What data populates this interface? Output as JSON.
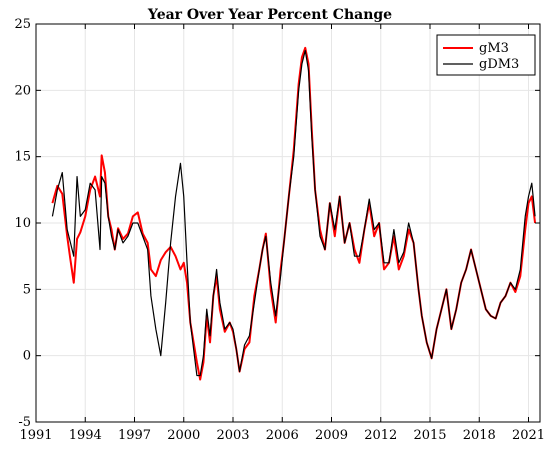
{
  "chart_data": {
    "type": "line",
    "title": "Year Over Year Percent Change",
    "xlabel": "",
    "ylabel": "",
    "xlim": [
      1991.0,
      2021.7
    ],
    "ylim": [
      -5,
      25
    ],
    "xticks": [
      1991,
      1994,
      1997,
      2000,
      2003,
      2006,
      2009,
      2012,
      2015,
      2018,
      2021
    ],
    "yticks": [
      -5,
      0,
      5,
      10,
      15,
      20,
      25
    ],
    "grid": true,
    "legend_position": "top-right",
    "series": [
      {
        "name": "gM3",
        "color": "#ff0000",
        "x": [
          1992.0,
          1992.3,
          1992.6,
          1992.9,
          1993.1,
          1993.3,
          1993.5,
          1993.7,
          1994.0,
          1994.3,
          1994.6,
          1994.9,
          1995.0,
          1995.2,
          1995.4,
          1995.6,
          1995.8,
          1996.0,
          1996.3,
          1996.6,
          1996.9,
          1997.2,
          1997.5,
          1997.8,
          1998.0,
          1998.3,
          1998.6,
          1998.9,
          1999.2,
          1999.5,
          1999.8,
          2000.0,
          2000.2,
          2000.4,
          2000.6,
          2000.8,
          2001.0,
          2001.2,
          2001.4,
          2001.6,
          2001.8,
          2002.0,
          2002.2,
          2002.5,
          2002.8,
          2003.0,
          2003.2,
          2003.4,
          2003.7,
          2004.0,
          2004.3,
          2004.6,
          2004.8,
          2005.0,
          2005.3,
          2005.6,
          2005.9,
          2006.1,
          2006.4,
          2006.7,
          2007.0,
          2007.2,
          2007.4,
          2007.6,
          2007.8,
          2008.0,
          2008.3,
          2008.6,
          2008.9,
          2009.2,
          2009.5,
          2009.8,
          2010.1,
          2010.4,
          2010.7,
          2011.0,
          2011.3,
          2011.6,
          2011.9,
          2012.2,
          2012.5,
          2012.8,
          2013.1,
          2013.4,
          2013.7,
          2014.0,
          2014.3,
          2014.5,
          2014.8,
          2015.1,
          2015.4,
          2015.7,
          2016.0,
          2016.3,
          2016.6,
          2016.9,
          2017.2,
          2017.5,
          2017.8,
          2018.1,
          2018.4,
          2018.7,
          2019.0,
          2019.3,
          2019.6,
          2019.9,
          2020.2,
          2020.5,
          2020.8,
          2021.0,
          2021.2,
          2021.4
        ],
        "y": [
          11.5,
          12.8,
          12.2,
          9.0,
          7.2,
          5.5,
          8.8,
          9.3,
          10.5,
          12.5,
          13.5,
          12.0,
          15.1,
          13.8,
          10.5,
          9.5,
          8.0,
          9.6,
          8.8,
          9.2,
          10.5,
          10.8,
          9.2,
          8.5,
          6.5,
          6.0,
          7.2,
          7.8,
          8.2,
          7.5,
          6.5,
          7.0,
          5.5,
          2.5,
          1.0,
          -0.5,
          -1.8,
          -0.5,
          3.0,
          1.0,
          4.5,
          6.0,
          3.5,
          1.8,
          2.5,
          1.8,
          0.5,
          -1.2,
          0.5,
          1.0,
          4.5,
          6.5,
          8.0,
          9.2,
          5.0,
          2.5,
          6.5,
          8.5,
          12.0,
          15.5,
          20.5,
          22.5,
          23.2,
          22.0,
          17.0,
          12.5,
          9.5,
          8.0,
          11.5,
          9.0,
          12.0,
          8.5,
          10.0,
          8.0,
          7.0,
          9.5,
          11.5,
          9.0,
          10.0,
          6.5,
          7.0,
          9.0,
          6.5,
          7.5,
          9.5,
          8.5,
          5.0,
          3.0,
          1.0,
          -0.2,
          2.0,
          3.5,
          5.0,
          2.0,
          3.5,
          5.5,
          6.5,
          8.0,
          6.5,
          5.0,
          3.5,
          3.0,
          2.8,
          4.0,
          4.5,
          5.5,
          4.8,
          6.0,
          9.5,
          11.5,
          12.0,
          10.0
        ]
      },
      {
        "name": "gDM3",
        "color": "#000000",
        "x": [
          1992.0,
          1992.3,
          1992.6,
          1992.9,
          1993.1,
          1993.3,
          1993.5,
          1993.7,
          1994.0,
          1994.3,
          1994.6,
          1994.9,
          1995.0,
          1995.2,
          1995.4,
          1995.6,
          1995.8,
          1996.0,
          1996.3,
          1996.6,
          1996.9,
          1997.2,
          1997.5,
          1997.8,
          1998.0,
          1998.3,
          1998.6,
          1998.9,
          1999.2,
          1999.5,
          1999.8,
          2000.0,
          2000.2,
          2000.4,
          2000.6,
          2000.8,
          2001.0,
          2001.2,
          2001.4,
          2001.6,
          2001.8,
          2002.0,
          2002.2,
          2002.5,
          2002.8,
          2003.0,
          2003.2,
          2003.4,
          2003.7,
          2004.0,
          2004.3,
          2004.6,
          2004.8,
          2005.0,
          2005.3,
          2005.6,
          2005.9,
          2006.1,
          2006.4,
          2006.7,
          2007.0,
          2007.2,
          2007.4,
          2007.6,
          2007.8,
          2008.0,
          2008.3,
          2008.6,
          2008.9,
          2009.2,
          2009.5,
          2009.8,
          2010.1,
          2010.4,
          2010.7,
          2011.0,
          2011.3,
          2011.6,
          2011.9,
          2012.2,
          2012.5,
          2012.8,
          2013.1,
          2013.4,
          2013.7,
          2014.0,
          2014.3,
          2014.5,
          2014.8,
          2015.1,
          2015.4,
          2015.7,
          2016.0,
          2016.3,
          2016.6,
          2016.9,
          2017.2,
          2017.5,
          2017.8,
          2018.1,
          2018.4,
          2018.7,
          2019.0,
          2019.3,
          2019.6,
          2019.9,
          2020.2,
          2020.5,
          2020.8,
          2021.0,
          2021.2,
          2021.4
        ],
        "y": [
          10.5,
          12.5,
          13.8,
          9.5,
          8.5,
          7.5,
          13.5,
          10.5,
          11.0,
          13.0,
          12.5,
          8.0,
          13.5,
          13.0,
          10.5,
          9.0,
          8.0,
          9.5,
          8.5,
          9.0,
          10.0,
          10.0,
          9.0,
          8.0,
          4.5,
          2.0,
          0.0,
          4.0,
          8.5,
          12.0,
          14.5,
          12.0,
          7.0,
          2.5,
          0.5,
          -1.5,
          -1.5,
          0.0,
          3.5,
          1.5,
          4.5,
          6.5,
          4.0,
          2.0,
          2.5,
          2.0,
          0.5,
          -1.2,
          0.8,
          1.5,
          4.0,
          6.5,
          8.0,
          9.0,
          5.5,
          3.0,
          6.0,
          8.5,
          12.0,
          15.0,
          20.0,
          22.0,
          23.0,
          21.5,
          16.5,
          12.5,
          9.0,
          8.0,
          11.5,
          9.5,
          12.0,
          8.5,
          10.0,
          7.5,
          7.5,
          9.5,
          11.8,
          9.5,
          10.0,
          7.0,
          7.0,
          9.5,
          7.0,
          7.8,
          10.0,
          8.5,
          5.0,
          3.0,
          1.0,
          -0.2,
          2.0,
          3.5,
          5.0,
          2.0,
          3.5,
          5.5,
          6.5,
          8.0,
          6.5,
          5.0,
          3.5,
          3.0,
          2.8,
          4.0,
          4.5,
          5.5,
          5.0,
          6.5,
          10.5,
          12.0,
          13.0,
          10.5
        ]
      }
    ]
  }
}
